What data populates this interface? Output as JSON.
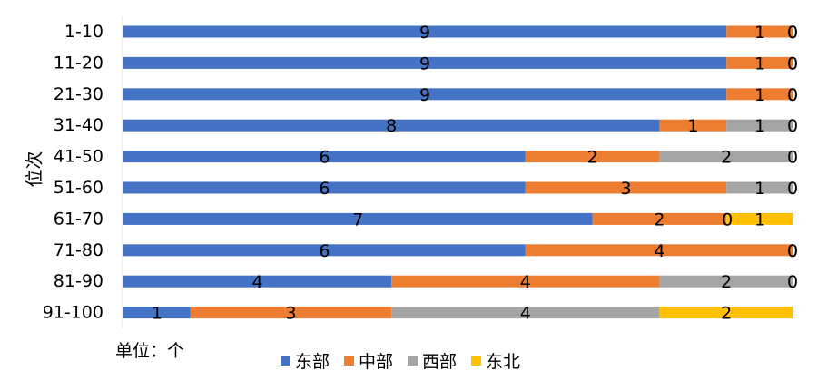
{
  "chart_data": {
    "type": "bar",
    "orientation": "horizontal",
    "stacked": true,
    "ylabel": "位次",
    "unit_note": "单位：个",
    "categories": [
      "1-10",
      "11-20",
      "21-30",
      "31-40",
      "41-50",
      "51-60",
      "61-70",
      "71-80",
      "81-90",
      "91-100"
    ],
    "series": [
      {
        "name": "东部",
        "color": "#4472C4",
        "values": [
          9,
          9,
          9,
          8,
          6,
          6,
          7,
          6,
          4,
          1
        ]
      },
      {
        "name": "中部",
        "color": "#ED7D31",
        "values": [
          1,
          1,
          1,
          1,
          2,
          3,
          2,
          4,
          4,
          3
        ]
      },
      {
        "name": "西部",
        "color": "#A5A5A5",
        "values": [
          0,
          0,
          0,
          1,
          2,
          1,
          0,
          0,
          2,
          4
        ]
      },
      {
        "name": "东北",
        "color": "#FFC000",
        "values": [
          0,
          0,
          0,
          0,
          0,
          0,
          1,
          0,
          0,
          2
        ]
      }
    ],
    "xlim": [
      0,
      10
    ],
    "grid": false,
    "legend_position": "bottom",
    "data_labels": true
  }
}
